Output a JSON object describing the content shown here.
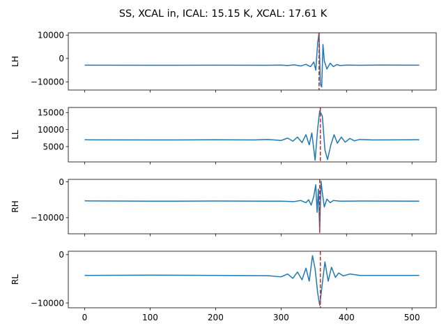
{
  "chart_data": {
    "type": "line",
    "title": "SS, XCAL in, ICAL: 15.15 K, XCAL: 17.61 K",
    "shared_x": {
      "xlim": [
        -25,
        537
      ],
      "ticks": [
        0,
        100,
        200,
        300,
        400,
        500
      ],
      "tick_labels": [
        "0",
        "100",
        "200",
        "300",
        "400",
        "500"
      ]
    },
    "colors": {
      "series": "#1f77b4",
      "marker_line": "#d62728"
    },
    "grid": false,
    "panels": [
      {
        "ylabel": "LH",
        "ylim": [
          -13500,
          11000
        ],
        "yticks": [
          10000,
          0,
          -10000
        ],
        "ytick_labels": [
          "10000",
          "0",
          "−10000"
        ],
        "marker_x": 358,
        "series": [
          {
            "points": [
              [
                0,
                -2850
              ],
              [
                100,
                -2900
              ],
              [
                200,
                -2850
              ],
              [
                280,
                -2900
              ],
              [
                300,
                -2800
              ],
              [
                310,
                -3000
              ],
              [
                320,
                -2700
              ],
              [
                330,
                -3200
              ],
              [
                338,
                -2500
              ],
              [
                345,
                -3500
              ],
              [
                350,
                -1500
              ],
              [
                353,
                -5000
              ],
              [
                356,
                7000
              ],
              [
                358,
                11000
              ],
              [
                360,
                -11000
              ],
              [
                362,
                -12200
              ],
              [
                364,
                6000
              ],
              [
                366,
                -1000
              ],
              [
                370,
                -4500
              ],
              [
                375,
                -2000
              ],
              [
                380,
                -3500
              ],
              [
                385,
                -2600
              ],
              [
                390,
                -3000
              ],
              [
                400,
                -2800
              ],
              [
                420,
                -2900
              ],
              [
                450,
                -2800
              ],
              [
                511,
                -2850
              ]
            ]
          }
        ]
      },
      {
        "ylabel": "LL",
        "ylim": [
          500,
          16500
        ],
        "yticks": [
          15000,
          10000,
          5000
        ],
        "ytick_labels": [
          "15000",
          "10000",
          "5000"
        ],
        "marker_x": 360,
        "series": [
          {
            "points": [
              [
                0,
                7000
              ],
              [
                100,
                6950
              ],
              [
                200,
                7000
              ],
              [
                260,
                6950
              ],
              [
                280,
                7100
              ],
              [
                300,
                6800
              ],
              [
                310,
                7500
              ],
              [
                318,
                6600
              ],
              [
                325,
                7800
              ],
              [
                332,
                6200
              ],
              [
                338,
                8500
              ],
              [
                343,
                5500
              ],
              [
                347,
                9000
              ],
              [
                352,
                1000
              ],
              [
                356,
                10500
              ],
              [
                359,
                15500
              ],
              [
                363,
                14000
              ],
              [
                367,
                4000
              ],
              [
                371,
                1200
              ],
              [
                376,
                5500
              ],
              [
                381,
                8500
              ],
              [
                386,
                6000
              ],
              [
                392,
                7800
              ],
              [
                398,
                6300
              ],
              [
                405,
                7400
              ],
              [
                412,
                6700
              ],
              [
                420,
                7100
              ],
              [
                440,
                6950
              ],
              [
                511,
                7000
              ]
            ]
          }
        ]
      },
      {
        "ylabel": "RH",
        "ylim": [
          -14500,
          700
        ],
        "yticks": [
          0,
          -10000
        ],
        "ytick_labels": [
          "0",
          "−10000"
        ],
        "marker_x": 359,
        "series": [
          {
            "points": [
              [
                0,
                -5300
              ],
              [
                100,
                -5400
              ],
              [
                200,
                -5350
              ],
              [
                300,
                -5400
              ],
              [
                320,
                -5500
              ],
              [
                330,
                -5200
              ],
              [
                338,
                -5800
              ],
              [
                342,
                -5000
              ],
              [
                346,
                -6500
              ],
              [
                350,
                -4000
              ],
              [
                353,
                -800
              ],
              [
                355,
                -8500
              ],
              [
                357,
                -2000
              ],
              [
                359,
                -13800
              ],
              [
                361,
                200
              ],
              [
                363,
                -3000
              ],
              [
                366,
                -7000
              ],
              [
                370,
                -4800
              ],
              [
                375,
                -5800
              ],
              [
                380,
                -5200
              ],
              [
                390,
                -5400
              ],
              [
                420,
                -5350
              ],
              [
                511,
                -5400
              ]
            ]
          }
        ]
      },
      {
        "ylabel": "RL",
        "ylim": [
          -11000,
          700
        ],
        "yticks": [
          0,
          -10000
        ],
        "ytick_labels": [
          "0",
          "−10000"
        ],
        "marker_x": 360,
        "series": [
          {
            "points": [
              [
                0,
                -4300
              ],
              [
                100,
                -4250
              ],
              [
                200,
                -4300
              ],
              [
                280,
                -4350
              ],
              [
                300,
                -4600
              ],
              [
                310,
                -4000
              ],
              [
                318,
                -4900
              ],
              [
                325,
                -3600
              ],
              [
                332,
                -5200
              ],
              [
                338,
                -2800
              ],
              [
                343,
                -5500
              ],
              [
                348,
                -200
              ],
              [
                352,
                -3000
              ],
              [
                356,
                -8000
              ],
              [
                359,
                -10500
              ],
              [
                363,
                -6000
              ],
              [
                367,
                -1500
              ],
              [
                372,
                -5500
              ],
              [
                377,
                -2600
              ],
              [
                383,
                -4700
              ],
              [
                388,
                -3800
              ],
              [
                395,
                -4400
              ],
              [
                405,
                -4000
              ],
              [
                420,
                -4300
              ],
              [
                511,
                -4300
              ]
            ]
          }
        ]
      }
    ]
  }
}
